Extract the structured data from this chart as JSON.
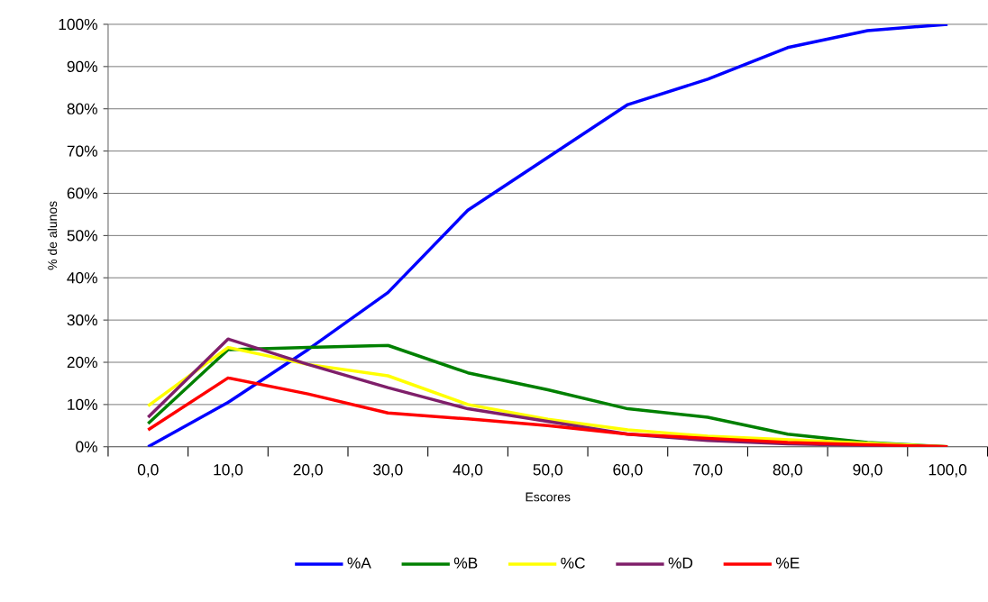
{
  "chart_data": {
    "type": "line",
    "xlabel": "Escores",
    "ylabel": "% de alunos",
    "categories": [
      "0,0",
      "10,0",
      "20,0",
      "30,0",
      "40,0",
      "50,0",
      "60,0",
      "70,0",
      "80,0",
      "90,0",
      "100,0"
    ],
    "series": [
      {
        "name": "%A",
        "color": "#0000ff",
        "values": [
          0,
          10.5,
          23,
          36.5,
          56,
          68.5,
          81,
          87,
          94.5,
          98.5,
          100
        ]
      },
      {
        "name": "%B",
        "color": "#008000",
        "values": [
          5.5,
          23,
          23.5,
          24,
          17.5,
          13.5,
          9,
          7,
          3,
          1,
          0
        ]
      },
      {
        "name": "%C",
        "color": "#ffff00",
        "values": [
          9.7,
          23.5,
          19.5,
          16.8,
          10,
          6.5,
          4,
          2.5,
          null,
          null,
          0
        ]
      },
      {
        "name": "%D",
        "color": "#7f1f6a",
        "values": [
          7,
          25.5,
          19.5,
          14,
          9,
          6,
          3,
          1.5,
          0.7,
          0.3,
          0
        ]
      },
      {
        "name": "%E",
        "color": "#ff0000",
        "values": [
          4,
          16.3,
          12.5,
          8,
          6.6,
          5,
          3,
          2,
          1,
          0.5,
          0
        ]
      }
    ],
    "ylim": [
      0,
      100
    ],
    "yticks": [
      {
        "value": 0,
        "label": "0%"
      },
      {
        "value": 10,
        "label": "10%"
      },
      {
        "value": 20,
        "label": "20%"
      },
      {
        "value": 30,
        "label": "30%"
      },
      {
        "value": 40,
        "label": "40%"
      },
      {
        "value": 50,
        "label": "50%"
      },
      {
        "value": 60,
        "label": "60%"
      },
      {
        "value": 70,
        "label": "70%"
      },
      {
        "value": 80,
        "label": "80%"
      },
      {
        "value": 90,
        "label": "90%"
      },
      {
        "value": 100,
        "label": "100%"
      }
    ],
    "grid": "y",
    "legend": "bottom"
  }
}
